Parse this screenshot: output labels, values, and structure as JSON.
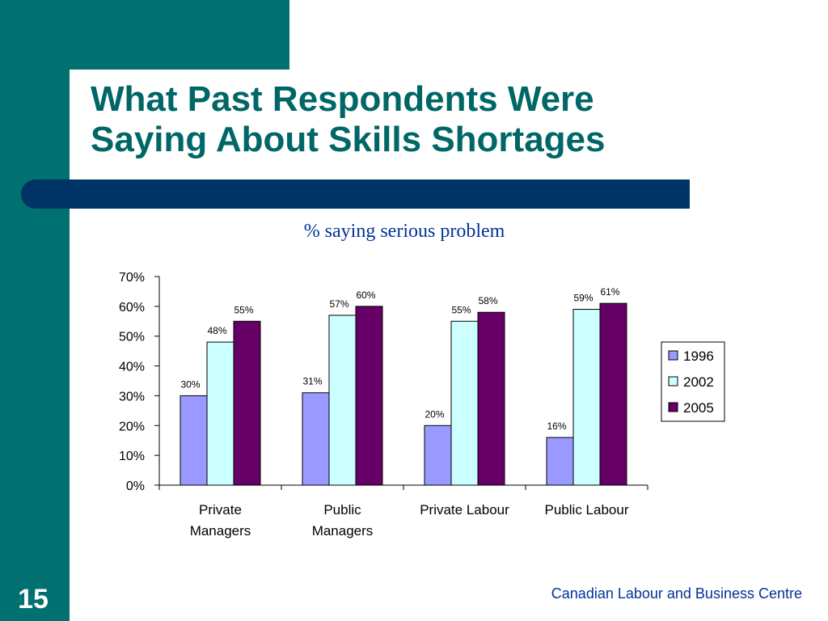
{
  "slide": {
    "title_line1": "What Past Respondents Were",
    "title_line2": "Saying About Skills Shortages",
    "subtitle": "% saying serious problem",
    "slide_number": "15",
    "footer": "Canadian Labour and Business Centre"
  },
  "colors": {
    "brand_teal": "#007070",
    "title_text": "#006666",
    "navy_bar": "#003366",
    "accent_blue": "#003399"
  },
  "chart_data": {
    "type": "bar",
    "title": "% saying serious problem",
    "xlabel": "",
    "ylabel": "",
    "categories": [
      [
        "Private",
        "Managers"
      ],
      [
        "Public",
        "Managers"
      ],
      [
        "Private Labour"
      ],
      [
        "Public Labour"
      ]
    ],
    "series": [
      {
        "name": "1996",
        "color": "#9999FF",
        "values": [
          30,
          31,
          20,
          16
        ],
        "labels": [
          "30%",
          "31%",
          "20%",
          "16%"
        ]
      },
      {
        "name": "2002",
        "color": "#CCFFFF",
        "values": [
          48,
          57,
          55,
          59
        ],
        "labels": [
          "48%",
          "57%",
          "55%",
          "59%"
        ]
      },
      {
        "name": "2005",
        "color": "#660066",
        "values": [
          55,
          60,
          58,
          61
        ],
        "labels": [
          "55%",
          "60%",
          "58%",
          "61%"
        ]
      }
    ],
    "ylim": [
      0,
      70
    ],
    "yticks": [
      0,
      10,
      20,
      30,
      40,
      50,
      60,
      70
    ],
    "ytick_labels": [
      "0%",
      "10%",
      "20%",
      "30%",
      "40%",
      "50%",
      "60%",
      "70%"
    ],
    "grid": false,
    "legend": "right"
  }
}
